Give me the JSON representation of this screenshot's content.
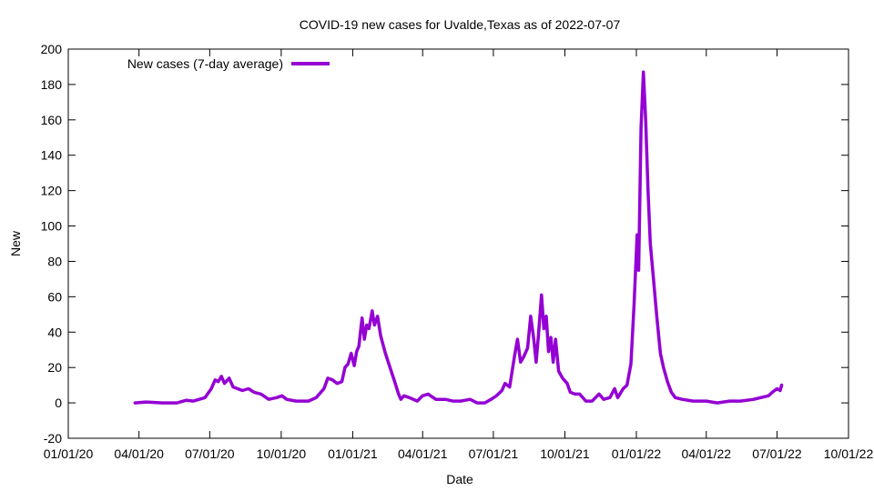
{
  "chart_data": {
    "type": "line",
    "title": "COVID-19 new cases for Uvalde,Texas as of 2022-07-07",
    "xlabel": "Date",
    "ylabel": "New",
    "x_type": "date",
    "xlim": [
      "2020-01-01",
      "2022-10-01"
    ],
    "ylim": [
      -20,
      200
    ],
    "y_ticks": [
      -20,
      0,
      20,
      40,
      60,
      80,
      100,
      120,
      140,
      160,
      180,
      200
    ],
    "x_ticks": [
      {
        "date": "2020-01-01",
        "label": "01/01/20"
      },
      {
        "date": "2020-04-01",
        "label": "04/01/20"
      },
      {
        "date": "2020-07-01",
        "label": "07/01/20"
      },
      {
        "date": "2020-10-01",
        "label": "10/01/20"
      },
      {
        "date": "2021-01-01",
        "label": "01/01/21"
      },
      {
        "date": "2021-04-01",
        "label": "04/01/21"
      },
      {
        "date": "2021-07-01",
        "label": "07/01/21"
      },
      {
        "date": "2021-10-01",
        "label": "10/01/21"
      },
      {
        "date": "2022-01-01",
        "label": "01/01/22"
      },
      {
        "date": "2022-04-01",
        "label": "04/01/22"
      },
      {
        "date": "2022-07-01",
        "label": "07/01/22"
      },
      {
        "date": "2022-10-01",
        "label": "10/01/22"
      }
    ],
    "grid": false,
    "legend_position": "top-left",
    "series": [
      {
        "name": "New cases (7-day average)",
        "color": "#9400d3",
        "points": [
          [
            "2020-03-27",
            0
          ],
          [
            "2020-04-10",
            0.5
          ],
          [
            "2020-05-01",
            0
          ],
          [
            "2020-05-20",
            0
          ],
          [
            "2020-06-01",
            1.5
          ],
          [
            "2020-06-10",
            1
          ],
          [
            "2020-06-25",
            3
          ],
          [
            "2020-07-03",
            8
          ],
          [
            "2020-07-08",
            13
          ],
          [
            "2020-07-12",
            12
          ],
          [
            "2020-07-16",
            15
          ],
          [
            "2020-07-20",
            11
          ],
          [
            "2020-07-26",
            14
          ],
          [
            "2020-07-31",
            9
          ],
          [
            "2020-08-06",
            8
          ],
          [
            "2020-08-12",
            7
          ],
          [
            "2020-08-20",
            8
          ],
          [
            "2020-08-27",
            6
          ],
          [
            "2020-09-05",
            5
          ],
          [
            "2020-09-15",
            2
          ],
          [
            "2020-09-25",
            3
          ],
          [
            "2020-10-02",
            4
          ],
          [
            "2020-10-08",
            2
          ],
          [
            "2020-10-20",
            1
          ],
          [
            "2020-11-05",
            1
          ],
          [
            "2020-11-15",
            3
          ],
          [
            "2020-11-25",
            8
          ],
          [
            "2020-11-30",
            14
          ],
          [
            "2020-12-06",
            13
          ],
          [
            "2020-12-12",
            11
          ],
          [
            "2020-12-18",
            12
          ],
          [
            "2020-12-22",
            20
          ],
          [
            "2020-12-26",
            22
          ],
          [
            "2020-12-30",
            28
          ],
          [
            "2021-01-03",
            21
          ],
          [
            "2021-01-06",
            29
          ],
          [
            "2021-01-09",
            32
          ],
          [
            "2021-01-11",
            40
          ],
          [
            "2021-01-13",
            48
          ],
          [
            "2021-01-16",
            36
          ],
          [
            "2021-01-19",
            44
          ],
          [
            "2021-01-22",
            42
          ],
          [
            "2021-01-26",
            52
          ],
          [
            "2021-01-29",
            44
          ],
          [
            "2021-02-02",
            49
          ],
          [
            "2021-02-06",
            38
          ],
          [
            "2021-02-12",
            28
          ],
          [
            "2021-02-18",
            20
          ],
          [
            "2021-02-24",
            12
          ],
          [
            "2021-03-01",
            5
          ],
          [
            "2021-03-04",
            2
          ],
          [
            "2021-03-08",
            4
          ],
          [
            "2021-03-15",
            3
          ],
          [
            "2021-03-25",
            1
          ],
          [
            "2021-04-01",
            4
          ],
          [
            "2021-04-08",
            5
          ],
          [
            "2021-04-18",
            2
          ],
          [
            "2021-04-30",
            2
          ],
          [
            "2021-05-10",
            1
          ],
          [
            "2021-05-20",
            1
          ],
          [
            "2021-06-01",
            2
          ],
          [
            "2021-06-10",
            0
          ],
          [
            "2021-06-20",
            0
          ],
          [
            "2021-06-28",
            2
          ],
          [
            "2021-07-05",
            4
          ],
          [
            "2021-07-12",
            7
          ],
          [
            "2021-07-16",
            11
          ],
          [
            "2021-07-22",
            9
          ],
          [
            "2021-07-28",
            26
          ],
          [
            "2021-08-01",
            36
          ],
          [
            "2021-08-05",
            23
          ],
          [
            "2021-08-09",
            26
          ],
          [
            "2021-08-14",
            31
          ],
          [
            "2021-08-18",
            49
          ],
          [
            "2021-08-22",
            36
          ],
          [
            "2021-08-25",
            23
          ],
          [
            "2021-08-28",
            38
          ],
          [
            "2021-09-01",
            61
          ],
          [
            "2021-09-04",
            42
          ],
          [
            "2021-09-07",
            49
          ],
          [
            "2021-09-10",
            29
          ],
          [
            "2021-09-13",
            37
          ],
          [
            "2021-09-16",
            23
          ],
          [
            "2021-09-19",
            36
          ],
          [
            "2021-09-23",
            18
          ],
          [
            "2021-09-28",
            14
          ],
          [
            "2021-10-04",
            11
          ],
          [
            "2021-10-08",
            6
          ],
          [
            "2021-10-14",
            5
          ],
          [
            "2021-10-20",
            5
          ],
          [
            "2021-10-28",
            1
          ],
          [
            "2021-11-05",
            1
          ],
          [
            "2021-11-14",
            5
          ],
          [
            "2021-11-20",
            2
          ],
          [
            "2021-11-28",
            3
          ],
          [
            "2021-12-04",
            8
          ],
          [
            "2021-12-08",
            3
          ],
          [
            "2021-12-15",
            8
          ],
          [
            "2021-12-20",
            10
          ],
          [
            "2021-12-25",
            22
          ],
          [
            "2021-12-29",
            55
          ],
          [
            "2022-01-02",
            95
          ],
          [
            "2022-01-04",
            75
          ],
          [
            "2022-01-07",
            155
          ],
          [
            "2022-01-10",
            187
          ],
          [
            "2022-01-13",
            160
          ],
          [
            "2022-01-16",
            120
          ],
          [
            "2022-01-19",
            90
          ],
          [
            "2022-01-23",
            70
          ],
          [
            "2022-01-27",
            50
          ],
          [
            "2022-02-01",
            28
          ],
          [
            "2022-02-05",
            20
          ],
          [
            "2022-02-10",
            12
          ],
          [
            "2022-02-15",
            6
          ],
          [
            "2022-02-20",
            3
          ],
          [
            "2022-03-01",
            2
          ],
          [
            "2022-03-15",
            1
          ],
          [
            "2022-04-01",
            1
          ],
          [
            "2022-04-15",
            0
          ],
          [
            "2022-05-01",
            1
          ],
          [
            "2022-05-15",
            1
          ],
          [
            "2022-06-01",
            2
          ],
          [
            "2022-06-10",
            3
          ],
          [
            "2022-06-20",
            4
          ],
          [
            "2022-06-25",
            6
          ],
          [
            "2022-07-01",
            8
          ],
          [
            "2022-07-05",
            7
          ],
          [
            "2022-07-07",
            10
          ]
        ]
      }
    ]
  }
}
